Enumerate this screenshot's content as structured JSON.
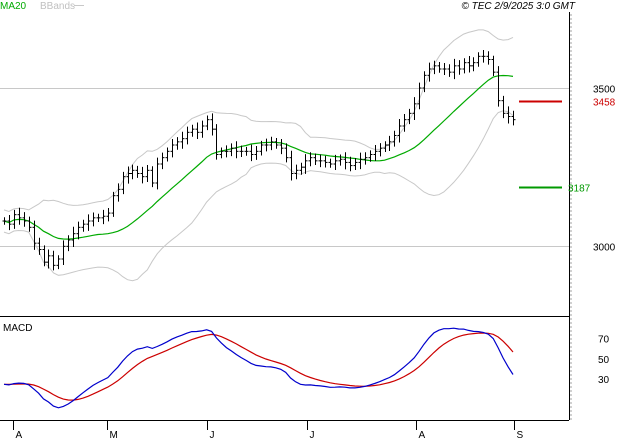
{
  "header": {
    "legend_ma": "MA20",
    "legend_bb": "BBands",
    "copyright": "© TEC 2/9/2025 3:0 GMT"
  },
  "colors": {
    "price": "#000000",
    "ma": "#00aa00",
    "bands": "#c8c8c8",
    "macd": "#0000cc",
    "signal": "#cc0000",
    "resistance": "#cc0000",
    "support": "#009900",
    "grid": "#c8c8c8"
  },
  "chart_data": [
    {
      "type": "ohlc",
      "ylim": [
        2780,
        3740
      ],
      "y_ticks": [
        3000,
        3500
      ],
      "y_tick_labels": [
        "3000",
        "3500"
      ],
      "x_ticks": [
        "A",
        "M",
        "J",
        "J",
        "A",
        "S"
      ],
      "levels": [
        {
          "name": "resistance",
          "value": 3458,
          "label": "3458"
        },
        {
          "name": "support",
          "value": 3187,
          "label": "3187"
        }
      ],
      "close": [
        3080,
        3070,
        3100,
        3090,
        3080,
        3060,
        3010,
        2990,
        2950,
        2970,
        2940,
        2960,
        3000,
        3020,
        3040,
        3060,
        3070,
        3080,
        3090,
        3090,
        3095,
        3105,
        3160,
        3180,
        3220,
        3230,
        3240,
        3230,
        3220,
        3240,
        3200,
        3260,
        3280,
        3300,
        3320,
        3330,
        3340,
        3360,
        3370,
        3360,
        3380,
        3400,
        3370,
        3290,
        3300,
        3300,
        3310,
        3300,
        3300,
        3300,
        3290,
        3300,
        3320,
        3320,
        3330,
        3320,
        3310,
        3280,
        3230,
        3240,
        3250,
        3270,
        3280,
        3270,
        3270,
        3265,
        3260,
        3270,
        3275,
        3265,
        3255,
        3265,
        3275,
        3280,
        3290,
        3300,
        3310,
        3320,
        3330,
        3350,
        3380,
        3400,
        3420,
        3450,
        3500,
        3540,
        3560,
        3570,
        3560,
        3560,
        3550,
        3570,
        3560,
        3580,
        3570,
        3580,
        3600,
        3600,
        3590,
        3550,
        3460,
        3420,
        3410,
        3400
      ]
    },
    {
      "type": "line",
      "title": "MACD",
      "ylim": [
        -10,
        90
      ],
      "y_ticks": [
        70,
        50,
        30
      ],
      "y_tick_labels": [
        "70",
        "50",
        "30"
      ]
    }
  ]
}
